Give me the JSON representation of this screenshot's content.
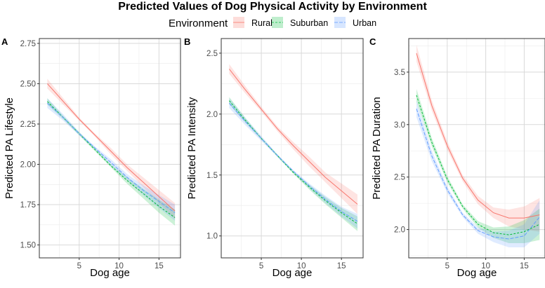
{
  "figure": {
    "title": "Predicted Values of Dog Physical Activity by Environment",
    "legend_title": "Environment"
  },
  "colors": {
    "Rural": "#F8766D",
    "Suburban": "#00BA38",
    "Urban": "#619CFF"
  },
  "chart_data": [
    {
      "type": "line",
      "panel": "A",
      "title": "",
      "xlabel": "Dog age",
      "ylabel": "Predicted PA Lifestyle",
      "xlim": [
        0,
        17.7
      ],
      "ylim": [
        1.42,
        2.78
      ],
      "xticks": [
        5,
        10,
        15
      ],
      "yticks": [
        1.5,
        1.75,
        2.0,
        2.25,
        2.5,
        2.75
      ],
      "ytick_labels": [
        "1.50",
        "1.75",
        "2.00",
        "2.25",
        "2.50",
        "2.75"
      ],
      "x": [
        1,
        3,
        5,
        7,
        9,
        11,
        13,
        15,
        17
      ],
      "series": [
        {
          "name": "Rural",
          "values": [
            2.5,
            2.39,
            2.28,
            2.18,
            2.08,
            1.98,
            1.89,
            1.8,
            1.71
          ],
          "lower": [
            2.47,
            2.37,
            2.27,
            2.17,
            2.06,
            1.96,
            1.86,
            1.76,
            1.66
          ],
          "upper": [
            2.53,
            2.41,
            2.29,
            2.19,
            2.1,
            2.0,
            1.92,
            1.84,
            1.76
          ]
        },
        {
          "name": "Suburban",
          "values": [
            2.39,
            2.29,
            2.19,
            2.09,
            1.99,
            1.9,
            1.82,
            1.74,
            1.67
          ],
          "lower": [
            2.37,
            2.28,
            2.18,
            2.08,
            1.98,
            1.88,
            1.79,
            1.7,
            1.62
          ],
          "upper": [
            2.41,
            2.3,
            2.2,
            2.1,
            2.0,
            1.92,
            1.85,
            1.78,
            1.72
          ]
        },
        {
          "name": "Urban",
          "values": [
            2.38,
            2.29,
            2.19,
            2.1,
            2.01,
            1.92,
            1.84,
            1.77,
            1.7
          ],
          "lower": [
            2.35,
            2.27,
            2.18,
            2.09,
            1.99,
            1.9,
            1.81,
            1.73,
            1.65
          ],
          "upper": [
            2.41,
            2.31,
            2.2,
            2.11,
            2.03,
            1.94,
            1.87,
            1.81,
            1.75
          ]
        }
      ]
    },
    {
      "type": "line",
      "panel": "B",
      "title": "",
      "xlabel": "Dog age",
      "ylabel": "Predicted PA Intensity",
      "xlim": [
        0,
        17.7
      ],
      "ylim": [
        0.82,
        2.62
      ],
      "xticks": [
        5,
        10,
        15
      ],
      "yticks": [
        1.0,
        1.5,
        2.0,
        2.5
      ],
      "ytick_labels": [
        "1.0",
        "1.5",
        "2.0",
        "2.5"
      ],
      "x": [
        1,
        3,
        5,
        7,
        9,
        11,
        13,
        15,
        17
      ],
      "series": [
        {
          "name": "Rural",
          "values": [
            2.37,
            2.2,
            2.04,
            1.88,
            1.74,
            1.61,
            1.48,
            1.37,
            1.26
          ],
          "lower": [
            2.33,
            2.17,
            2.02,
            1.86,
            1.71,
            1.57,
            1.44,
            1.31,
            1.18
          ],
          "upper": [
            2.41,
            2.23,
            2.06,
            1.9,
            1.77,
            1.65,
            1.52,
            1.43,
            1.34
          ]
        },
        {
          "name": "Suburban",
          "values": [
            2.11,
            1.95,
            1.8,
            1.66,
            1.52,
            1.4,
            1.29,
            1.19,
            1.1
          ],
          "lower": [
            2.08,
            1.93,
            1.79,
            1.65,
            1.51,
            1.38,
            1.26,
            1.15,
            1.04
          ],
          "upper": [
            2.14,
            1.97,
            1.81,
            1.67,
            1.53,
            1.42,
            1.32,
            1.23,
            1.16
          ]
        },
        {
          "name": "Urban",
          "values": [
            2.09,
            1.94,
            1.8,
            1.66,
            1.53,
            1.41,
            1.3,
            1.2,
            1.12
          ],
          "lower": [
            2.05,
            1.91,
            1.78,
            1.65,
            1.52,
            1.39,
            1.27,
            1.16,
            1.06
          ],
          "upper": [
            2.13,
            1.97,
            1.82,
            1.67,
            1.54,
            1.43,
            1.33,
            1.24,
            1.18
          ]
        }
      ]
    },
    {
      "type": "line",
      "panel": "C",
      "title": "",
      "xlabel": "Dog age",
      "ylabel": "Predicted PA Duration",
      "xlim": [
        0,
        17.7
      ],
      "ylim": [
        1.73,
        3.82
      ],
      "xticks": [
        5,
        10,
        15
      ],
      "yticks": [
        2.0,
        2.5,
        3.0,
        3.5
      ],
      "ytick_labels": [
        "2.0",
        "2.5",
        "3.0",
        "3.5"
      ],
      "x": [
        1,
        3,
        5,
        7,
        9,
        11,
        13,
        15,
        17
      ],
      "series": [
        {
          "name": "Rural",
          "values": [
            3.68,
            3.18,
            2.8,
            2.49,
            2.28,
            2.16,
            2.11,
            2.11,
            2.14
          ],
          "lower": [
            3.6,
            3.13,
            2.76,
            2.46,
            2.24,
            2.11,
            2.03,
            2.0,
            1.98
          ],
          "upper": [
            3.76,
            3.23,
            2.84,
            2.52,
            2.32,
            2.21,
            2.19,
            2.22,
            2.3
          ]
        },
        {
          "name": "Suburban",
          "values": [
            3.28,
            2.83,
            2.48,
            2.22,
            2.05,
            1.97,
            1.95,
            1.98,
            2.05
          ],
          "lower": [
            3.22,
            2.79,
            2.45,
            2.2,
            2.02,
            1.92,
            1.87,
            1.87,
            1.9
          ],
          "upper": [
            3.34,
            2.87,
            2.51,
            2.24,
            2.08,
            2.02,
            2.03,
            2.09,
            2.2
          ]
        },
        {
          "name": "Urban",
          "values": [
            3.15,
            2.7,
            2.38,
            2.14,
            1.99,
            1.93,
            1.91,
            1.94,
            2.12
          ],
          "lower": [
            3.07,
            2.65,
            2.35,
            2.12,
            1.96,
            1.88,
            1.83,
            1.83,
            1.96
          ],
          "upper": [
            3.23,
            2.75,
            2.41,
            2.16,
            2.02,
            1.98,
            1.99,
            2.05,
            2.28
          ]
        }
      ]
    }
  ]
}
